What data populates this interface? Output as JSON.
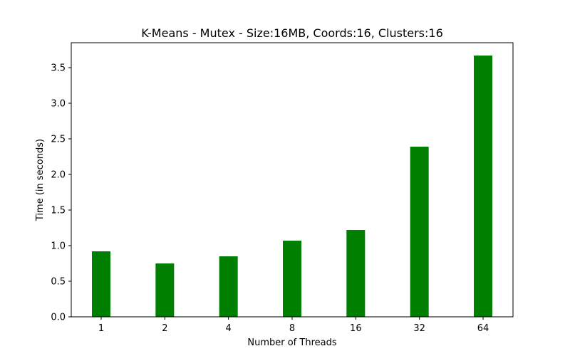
{
  "chart_data": {
    "type": "bar",
    "title": "K-Means - Mutex - Size:16MB, Coords:16, Clusters:16",
    "xlabel": "Number of Threads",
    "ylabel": "Time (in seconds)",
    "categories": [
      "1",
      "2",
      "4",
      "8",
      "16",
      "32",
      "64"
    ],
    "values": [
      0.92,
      0.75,
      0.85,
      1.07,
      1.22,
      2.39,
      3.67
    ],
    "ylim": [
      0,
      3.85
    ],
    "yticks": [
      "0.0",
      "0.5",
      "1.0",
      "1.5",
      "2.0",
      "2.5",
      "3.0",
      "3.5"
    ],
    "bar_color": "#008000",
    "grid": false,
    "legend": "none"
  }
}
